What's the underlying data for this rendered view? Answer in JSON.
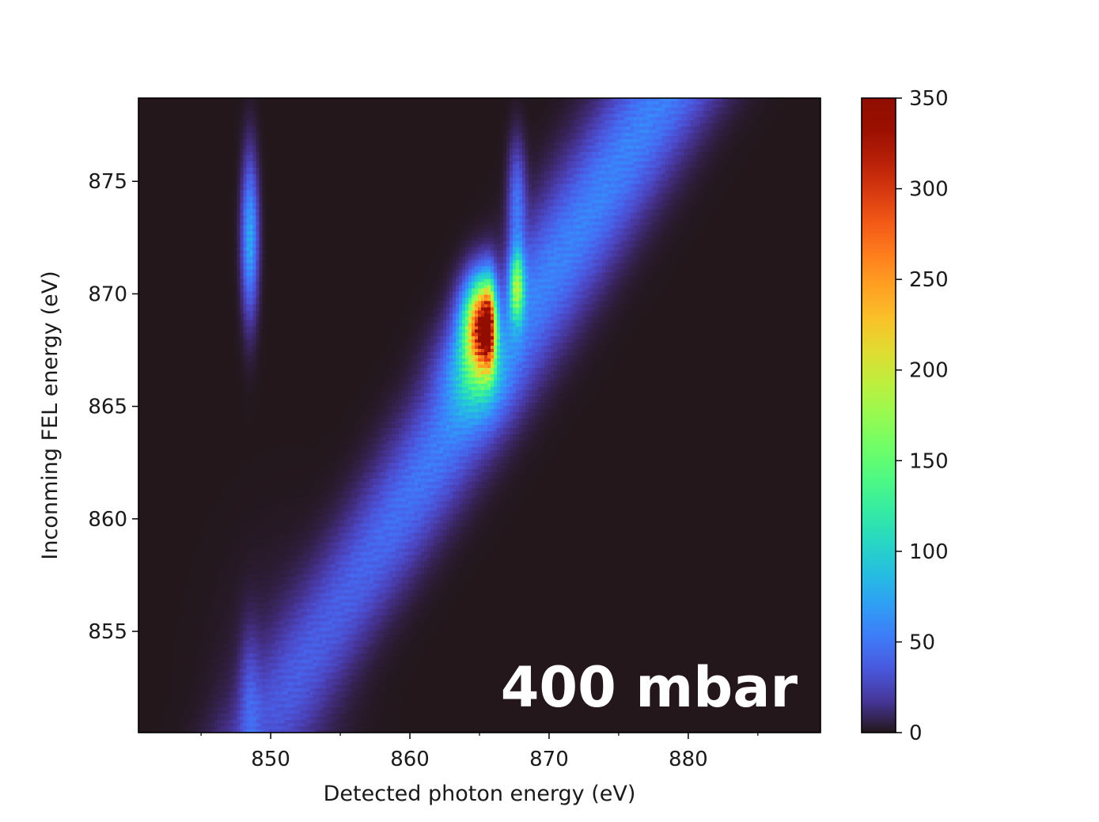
{
  "chart_data": {
    "type": "heatmap",
    "title": "",
    "xlabel": "Detected photon energy (eV)",
    "ylabel": "Inconming FEL energy (eV)",
    "xlim": [
      840.5,
      889.5
    ],
    "ylim": [
      850.5,
      878.7
    ],
    "xticks": [
      850,
      860,
      870,
      880
    ],
    "yticks": [
      855,
      860,
      865,
      870,
      875
    ],
    "x_minor_ticks": [
      845,
      855,
      865,
      875,
      885
    ],
    "annotation": "400 mbar",
    "colorbar": {
      "colormap": "turbo",
      "min": 0,
      "max": 350,
      "ticks": [
        0,
        50,
        100,
        150,
        200,
        250,
        300,
        350
      ]
    },
    "features": [
      {
        "kind": "elastic-diagonal",
        "description": "broad diagonal band where detected energy follows incoming energy",
        "start": [
          849.5,
          850.5
        ],
        "end": [
          878.0,
          878.7
        ],
        "peak_intensity": 55
      },
      {
        "kind": "vertical-line",
        "x": 848.5,
        "y_range": [
          866.5,
          878.5
        ],
        "peak_intensity": 75,
        "peak_y": 872.5
      },
      {
        "kind": "vertical-line",
        "x": 848.5,
        "y_range": [
          850.5,
          857.0
        ],
        "peak_intensity": 22,
        "peak_y": 852.0
      },
      {
        "kind": "hot-spot",
        "x": 865.6,
        "y": 868.6,
        "peak_intensity": 350,
        "y_range": [
          864.5,
          872.5
        ]
      },
      {
        "kind": "vertical-line",
        "x": 867.7,
        "y_range": [
          866.5,
          873.5
        ],
        "peak_intensity": 140,
        "peak_y": 870.3
      }
    ]
  }
}
